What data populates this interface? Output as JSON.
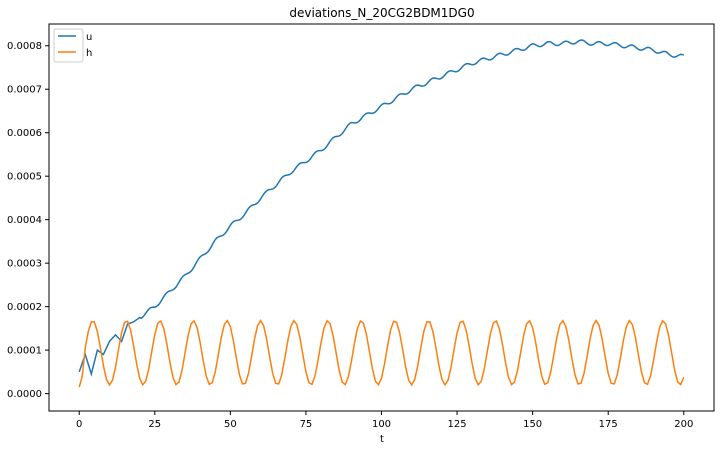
{
  "chart_data": {
    "type": "line",
    "title": "deviations_N_20CG2BDM1DG0",
    "xlabel": "t",
    "ylabel": "",
    "xlim": [
      -10,
      210
    ],
    "ylim": [
      -4e-05,
      0.00085
    ],
    "x_ticks": [
      0,
      25,
      50,
      75,
      100,
      125,
      150,
      175,
      200
    ],
    "y_ticks": [
      0.0,
      0.0001,
      0.0002,
      0.0003,
      0.0004,
      0.0005,
      0.0006,
      0.0007,
      0.0008
    ],
    "x_tick_labels": [
      "0",
      "25",
      "50",
      "75",
      "100",
      "125",
      "150",
      "175",
      "200"
    ],
    "y_tick_labels": [
      "0.0000",
      "0.0001",
      "0.0002",
      "0.0003",
      "0.0004",
      "0.0005",
      "0.0006",
      "0.0007",
      "0.0008"
    ],
    "grid": false,
    "legend_position": "top-left",
    "series": [
      {
        "name": "u",
        "color": "#1f77b4",
        "x": [
          0,
          2,
          4,
          6,
          8,
          10,
          12,
          14,
          16,
          18,
          20,
          25,
          30,
          35,
          40,
          45,
          50,
          55,
          60,
          65,
          70,
          75,
          80,
          85,
          90,
          95,
          100,
          105,
          110,
          115,
          120,
          125,
          130,
          135,
          140,
          145,
          150,
          155,
          160,
          165,
          170,
          175,
          180,
          185,
          190,
          195,
          200
        ],
        "values": [
          5e-05,
          9e-05,
          4.5e-05,
          0.0001,
          9e-05,
          0.00012,
          0.000135,
          0.00012,
          0.00016,
          0.000165,
          0.000175,
          0.0002,
          0.000235,
          0.00027,
          0.00031,
          0.00035,
          0.000385,
          0.000415,
          0.00045,
          0.00048,
          0.00051,
          0.000535,
          0.00056,
          0.00059,
          0.00062,
          0.00064,
          0.00066,
          0.00068,
          0.0007,
          0.000715,
          0.00073,
          0.000745,
          0.00076,
          0.00077,
          0.00078,
          0.00079,
          0.0008,
          0.000805,
          0.000805,
          0.00081,
          0.000805,
          0.000805,
          0.0008,
          0.000795,
          0.00079,
          0.00078,
          0.000775
        ]
      },
      {
        "name": "h",
        "color": "#ff7f0e",
        "period": 11.1,
        "x_start": 0,
        "x_end": 200,
        "min": 2e-05,
        "max": 0.000168,
        "phase_x_at_max": 4.5,
        "notes_only_for_script": ""
      }
    ]
  }
}
